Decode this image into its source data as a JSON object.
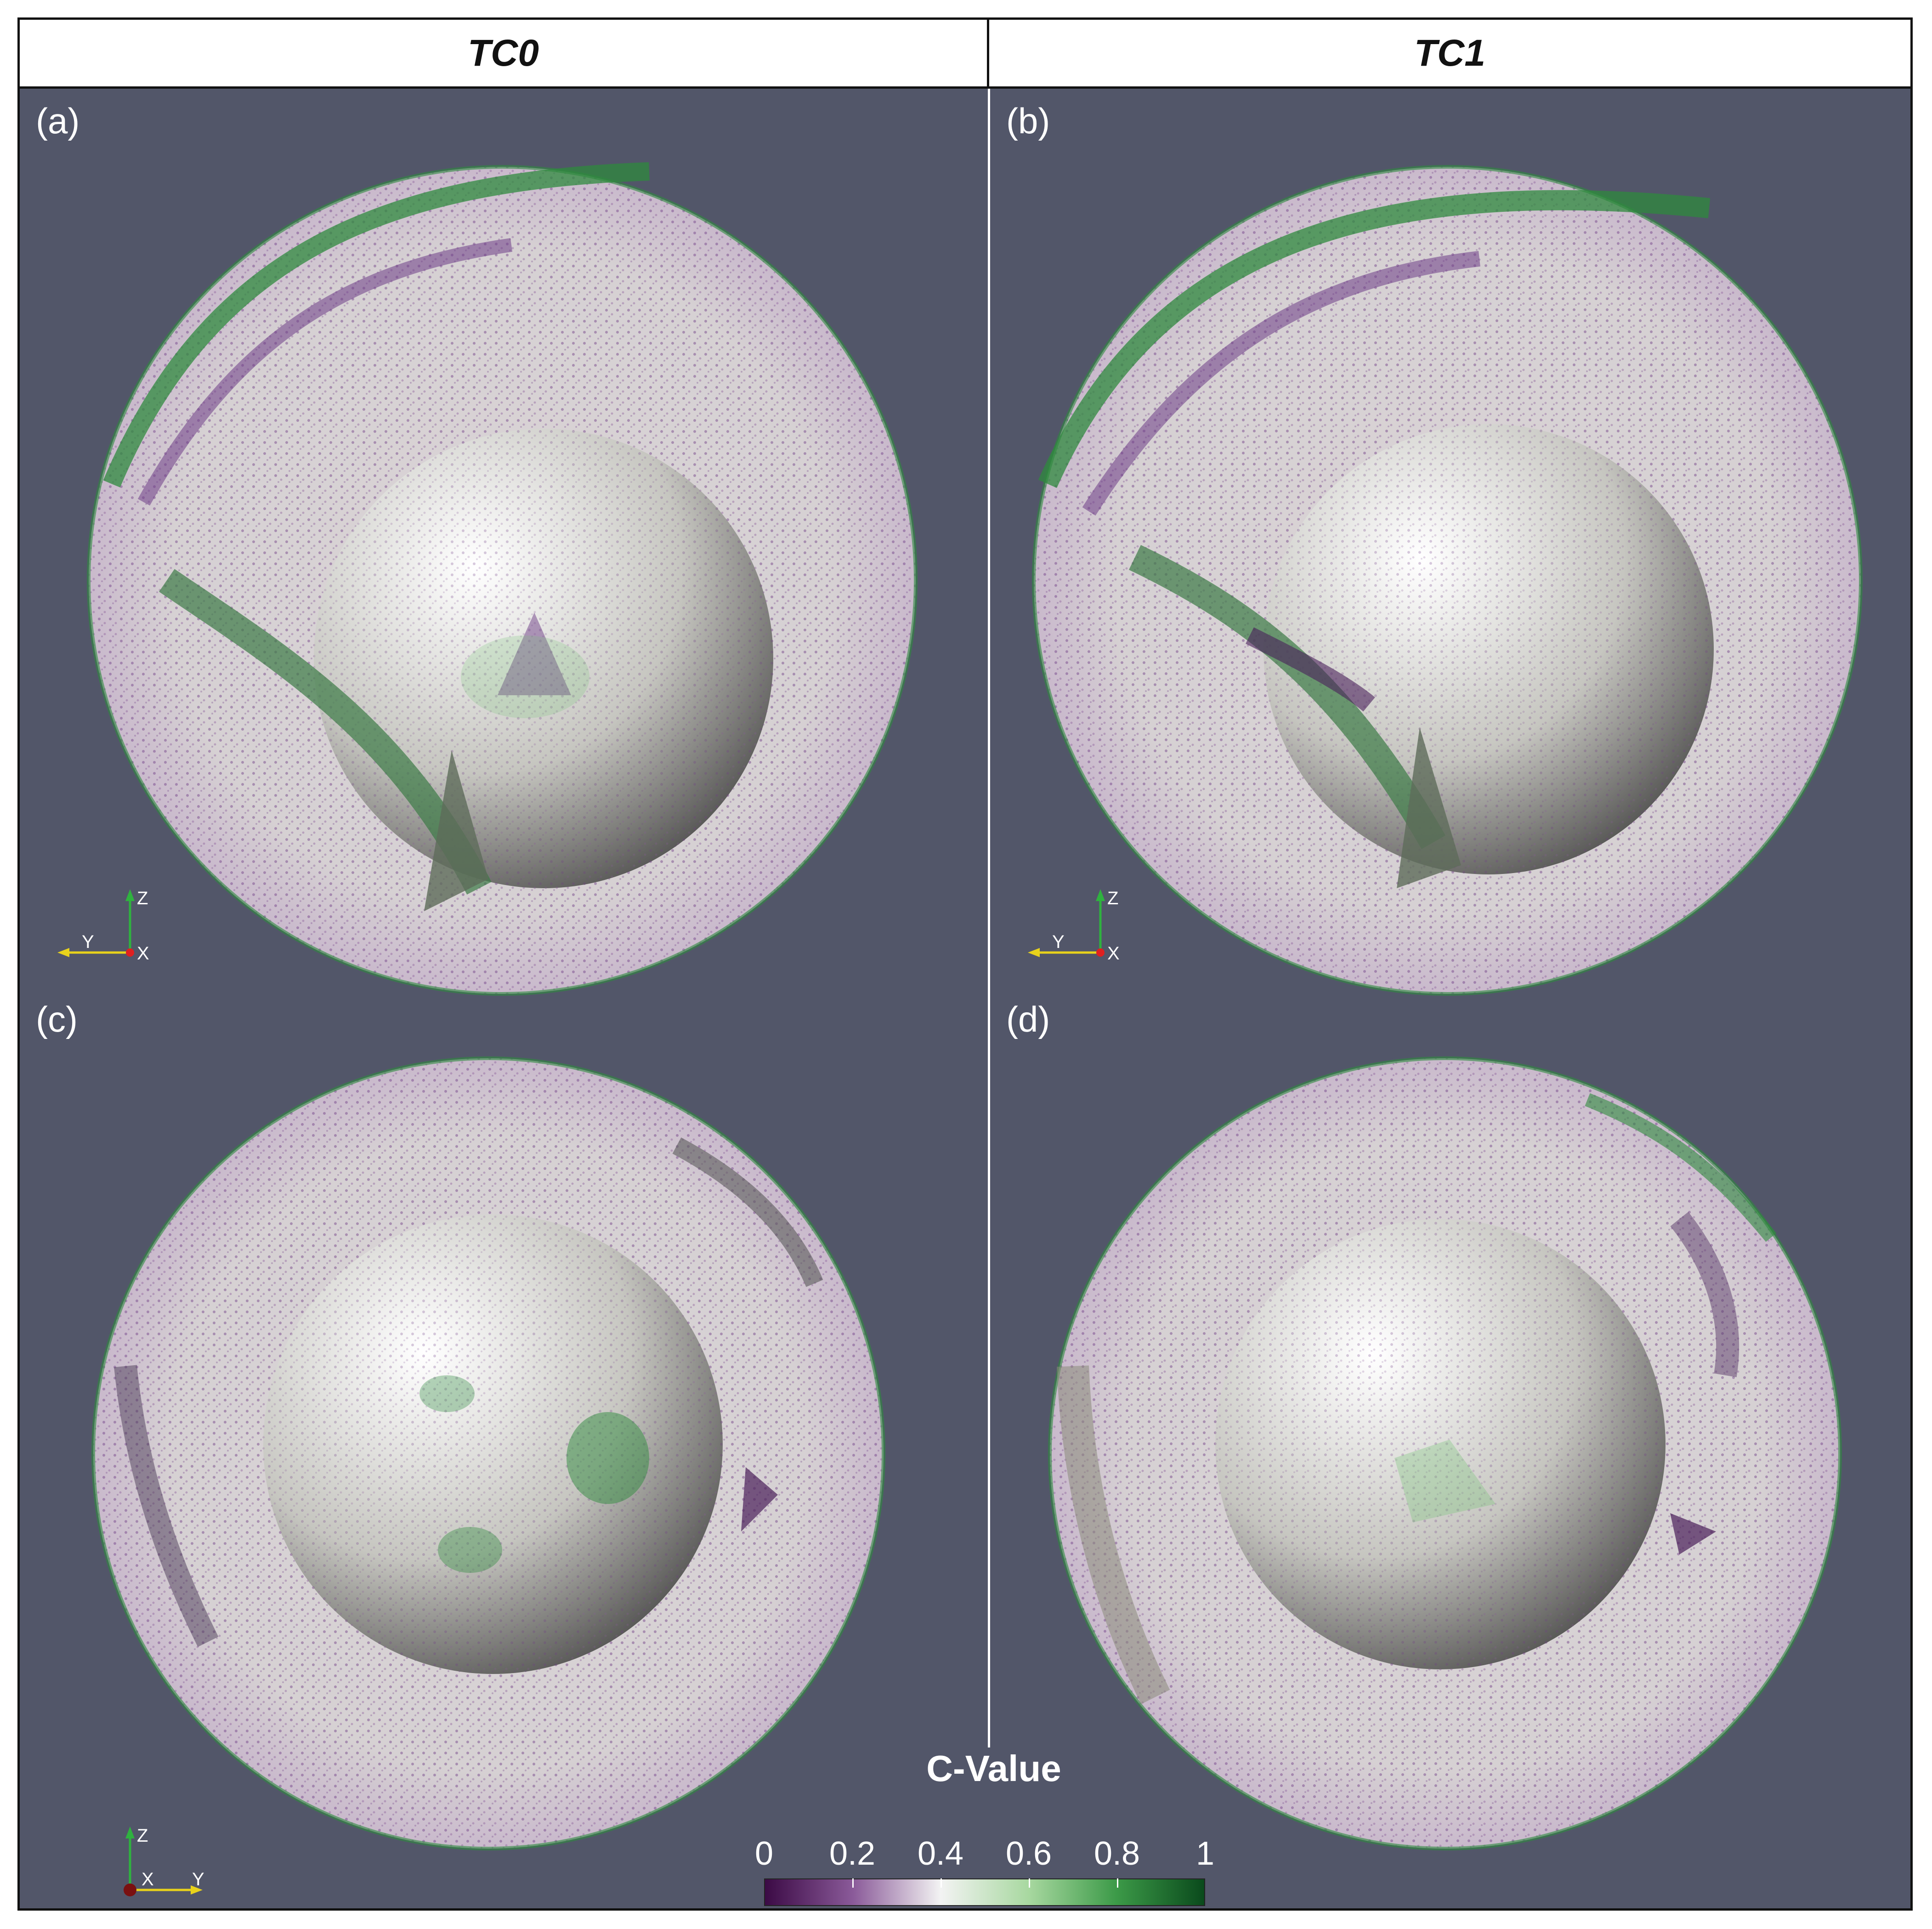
{
  "header": {
    "left_title": "TC0",
    "right_title": "TC1"
  },
  "panels": [
    {
      "label": "(a)",
      "axes": {
        "up": "Z",
        "left": "Y",
        "center": "X"
      }
    },
    {
      "label": "(b)",
      "axes": {
        "up": "Z",
        "left": "Y",
        "center": "X"
      }
    },
    {
      "label": "(c)",
      "axes": {
        "up": "Z",
        "center": "X",
        "right": "Y"
      }
    },
    {
      "label": "(d)"
    }
  ],
  "colorbar": {
    "title": "C-Value",
    "ticks": [
      "0",
      "0.2",
      "0.4",
      "0.6",
      "0.8",
      "1"
    ],
    "colors": [
      "#3b0a45",
      "#8a5a99",
      "#f3f3f3",
      "#a8d8a0",
      "#3c9a48",
      "#0a4a1c"
    ]
  },
  "colors": {
    "background": "#525669",
    "shell": "#d8d6cf",
    "purple": "#6e3d86",
    "green": "#2f8a3e"
  }
}
